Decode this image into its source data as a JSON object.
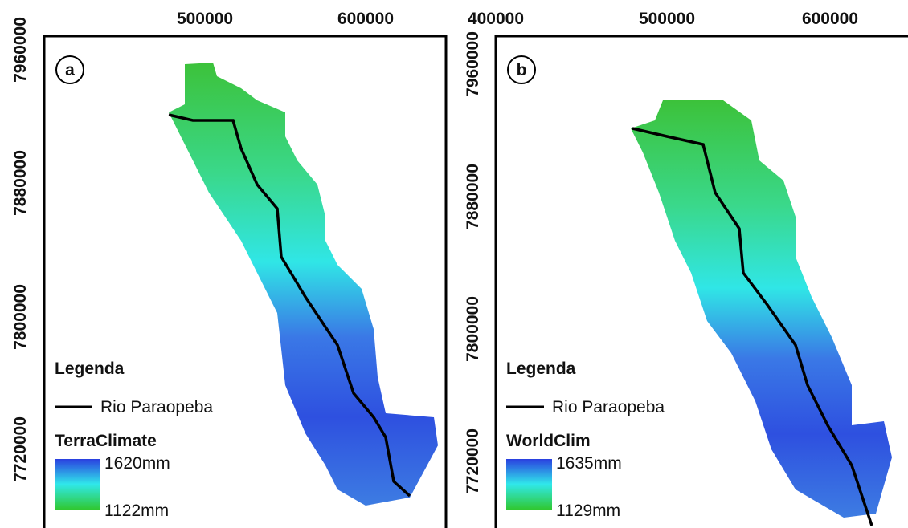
{
  "panels": [
    {
      "label": "a",
      "x_ticks": [
        500000,
        600000
      ],
      "y_ticks": [
        7960000,
        7880000,
        7800000,
        7720000
      ],
      "legend": {
        "title": "Legenda",
        "river": "Rio Paraopeba",
        "dataset": "TerraClimate",
        "max": "1620mm",
        "min": "1122mm"
      }
    },
    {
      "label": "b",
      "x_ticks": [
        400000,
        500000,
        600000
      ],
      "y_ticks": [
        7960000,
        7880000,
        7800000,
        7720000
      ],
      "legend": {
        "title": "Legenda",
        "river": "Rio Paraopeba",
        "dataset": "WorldClim",
        "max": "1635mm",
        "min": "1129mm"
      }
    }
  ]
}
